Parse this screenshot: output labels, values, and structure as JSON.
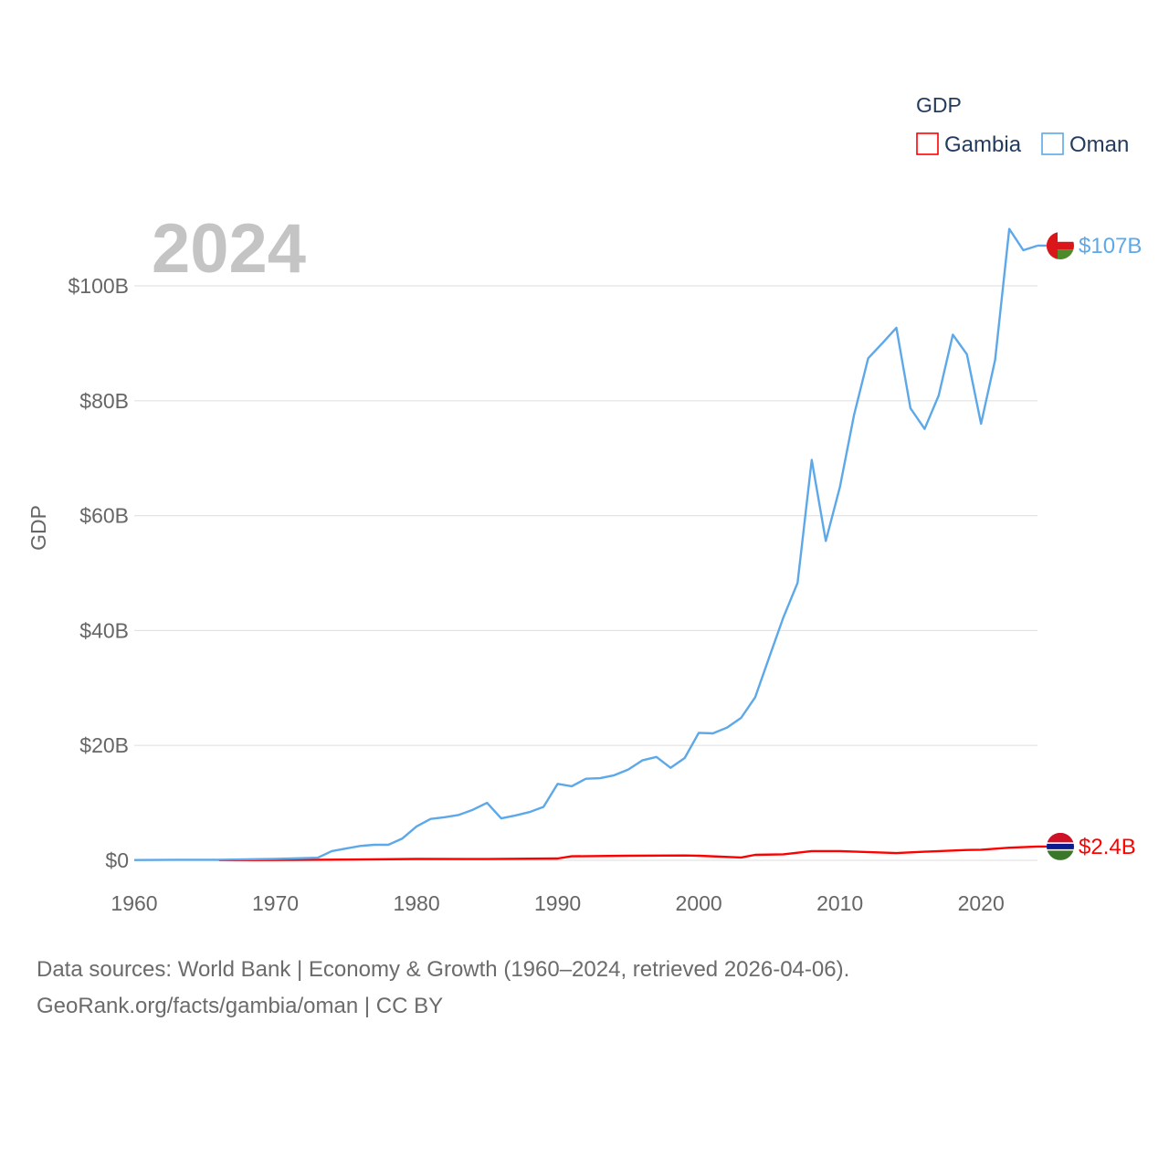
{
  "legend": {
    "title": "GDP"
  },
  "year_label": "2024",
  "footer": {
    "line1": "Data sources: World Bank | Economy & Growth (1960–2024, retrieved 2026-04-06).",
    "line2": "GeoRank.org/facts/gambia/oman | CC BY"
  },
  "chart_data": {
    "type": "line",
    "title": "GDP",
    "xlabel": "",
    "ylabel": "GDP",
    "xlim": [
      1960,
      2024
    ],
    "ylim": [
      0,
      100
    ],
    "y_unit": "billion USD",
    "grid": true,
    "legend_position": "top-right",
    "x_ticks": [
      {
        "value": 1960,
        "label": "1960"
      },
      {
        "value": 1970,
        "label": "1970"
      },
      {
        "value": 1980,
        "label": "1980"
      },
      {
        "value": 1990,
        "label": "1990"
      },
      {
        "value": 2000,
        "label": "2000"
      },
      {
        "value": 2010,
        "label": "2010"
      },
      {
        "value": 2020,
        "label": "2020"
      }
    ],
    "y_ticks": [
      {
        "value": 0,
        "label": "$0"
      },
      {
        "value": 20,
        "label": "$20B"
      },
      {
        "value": 40,
        "label": "$40B"
      },
      {
        "value": 60,
        "label": "$60B"
      },
      {
        "value": 80,
        "label": "$80B"
      },
      {
        "value": 100,
        "label": "$100B"
      }
    ],
    "series": [
      {
        "name": "Gambia",
        "color": "#ff0000",
        "end_label": "$2.4B",
        "flag": "gambia-flag-icon",
        "points": [
          [
            1966,
            0.03
          ],
          [
            1970,
            0.05
          ],
          [
            1975,
            0.12
          ],
          [
            1980,
            0.24
          ],
          [
            1985,
            0.23
          ],
          [
            1990,
            0.32
          ],
          [
            1991,
            0.7
          ],
          [
            1995,
            0.8
          ],
          [
            1999,
            0.85
          ],
          [
            2000,
            0.8
          ],
          [
            2003,
            0.5
          ],
          [
            2004,
            0.95
          ],
          [
            2006,
            1.05
          ],
          [
            2008,
            1.6
          ],
          [
            2010,
            1.6
          ],
          [
            2014,
            1.25
          ],
          [
            2016,
            1.5
          ],
          [
            2019,
            1.8
          ],
          [
            2020,
            1.85
          ],
          [
            2022,
            2.2
          ],
          [
            2024,
            2.4
          ]
        ]
      },
      {
        "name": "Oman",
        "color": "#5ca8e8",
        "end_label": "$107B",
        "flag": "oman-flag-icon",
        "points": [
          [
            1960,
            0.05
          ],
          [
            1963,
            0.1
          ],
          [
            1966,
            0.1
          ],
          [
            1970,
            0.26
          ],
          [
            1973,
            0.45
          ],
          [
            1974,
            1.6
          ],
          [
            1976,
            2.5
          ],
          [
            1977,
            2.7
          ],
          [
            1978,
            2.7
          ],
          [
            1979,
            3.8
          ],
          [
            1980,
            5.9
          ],
          [
            1981,
            7.2
          ],
          [
            1982,
            7.5
          ],
          [
            1983,
            7.9
          ],
          [
            1984,
            8.8
          ],
          [
            1985,
            10.0
          ],
          [
            1986,
            7.3
          ],
          [
            1987,
            7.8
          ],
          [
            1988,
            8.4
          ],
          [
            1989,
            9.3
          ],
          [
            1990,
            13.3
          ],
          [
            1991,
            12.9
          ],
          [
            1992,
            14.2
          ],
          [
            1993,
            14.3
          ],
          [
            1994,
            14.8
          ],
          [
            1995,
            15.8
          ],
          [
            1996,
            17.4
          ],
          [
            1997,
            18.0
          ],
          [
            1998,
            16.1
          ],
          [
            1999,
            17.8
          ],
          [
            2000,
            22.2
          ],
          [
            2001,
            22.1
          ],
          [
            2002,
            23.1
          ],
          [
            2003,
            24.8
          ],
          [
            2004,
            28.4
          ],
          [
            2005,
            35.4
          ],
          [
            2006,
            42.3
          ],
          [
            2007,
            48.3
          ],
          [
            2008,
            69.7
          ],
          [
            2009,
            55.6
          ],
          [
            2010,
            65.0
          ],
          [
            2011,
            77.5
          ],
          [
            2012,
            87.4
          ],
          [
            2013,
            90.0
          ],
          [
            2014,
            92.7
          ],
          [
            2015,
            78.7
          ],
          [
            2016,
            75.1
          ],
          [
            2017,
            80.9
          ],
          [
            2018,
            91.5
          ],
          [
            2019,
            88.1
          ],
          [
            2020,
            76.0
          ],
          [
            2021,
            87.1
          ],
          [
            2022,
            109.9
          ],
          [
            2023,
            106.2
          ],
          [
            2024,
            107.0
          ]
        ]
      }
    ]
  }
}
